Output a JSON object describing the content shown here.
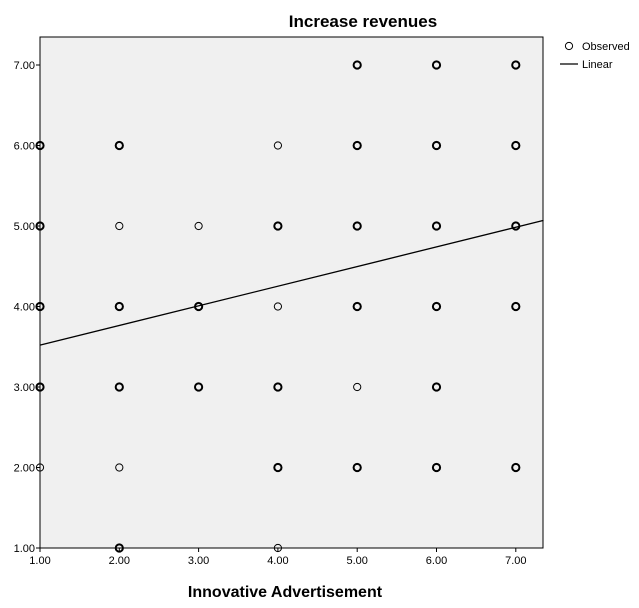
{
  "chart_data": {
    "type": "scatter",
    "title": "Increase revenues",
    "xlabel": "Innovative Advertisement",
    "ylabel": "",
    "xlim": [
      1.0,
      7.35
    ],
    "ylim": [
      1.0,
      7.35
    ],
    "xticks": [
      "1.00",
      "2.00",
      "3.00",
      "4.00",
      "5.00",
      "6.00",
      "7.00"
    ],
    "yticks": [
      "1.00",
      "2.00",
      "3.00",
      "4.00",
      "5.00",
      "6.00",
      "7.00"
    ],
    "grid": false,
    "legend": {
      "position": "top-right",
      "entries": [
        "Observed",
        "Linear"
      ]
    },
    "series": [
      {
        "name": "Observed",
        "points": [
          {
            "x": 1,
            "y": 2,
            "heavy": false
          },
          {
            "x": 1,
            "y": 3,
            "heavy": true
          },
          {
            "x": 1,
            "y": 4,
            "heavy": true
          },
          {
            "x": 1,
            "y": 5,
            "heavy": true
          },
          {
            "x": 1,
            "y": 6,
            "heavy": true
          },
          {
            "x": 2,
            "y": 1,
            "heavy": true
          },
          {
            "x": 2,
            "y": 2,
            "heavy": false
          },
          {
            "x": 2,
            "y": 3,
            "heavy": true
          },
          {
            "x": 2,
            "y": 4,
            "heavy": true
          },
          {
            "x": 2,
            "y": 5,
            "heavy": false
          },
          {
            "x": 2,
            "y": 6,
            "heavy": true
          },
          {
            "x": 3,
            "y": 3,
            "heavy": true
          },
          {
            "x": 3,
            "y": 4,
            "heavy": true
          },
          {
            "x": 3,
            "y": 5,
            "heavy": false
          },
          {
            "x": 4,
            "y": 1,
            "heavy": false
          },
          {
            "x": 4,
            "y": 2,
            "heavy": true
          },
          {
            "x": 4,
            "y": 3,
            "heavy": true
          },
          {
            "x": 4,
            "y": 4,
            "heavy": false
          },
          {
            "x": 4,
            "y": 5,
            "heavy": true
          },
          {
            "x": 4,
            "y": 6,
            "heavy": false
          },
          {
            "x": 5,
            "y": 2,
            "heavy": true
          },
          {
            "x": 5,
            "y": 3,
            "heavy": false
          },
          {
            "x": 5,
            "y": 4,
            "heavy": true
          },
          {
            "x": 5,
            "y": 5,
            "heavy": true
          },
          {
            "x": 5,
            "y": 6,
            "heavy": true
          },
          {
            "x": 5,
            "y": 7,
            "heavy": true
          },
          {
            "x": 6,
            "y": 2,
            "heavy": true
          },
          {
            "x": 6,
            "y": 3,
            "heavy": true
          },
          {
            "x": 6,
            "y": 4,
            "heavy": true
          },
          {
            "x": 6,
            "y": 5,
            "heavy": true
          },
          {
            "x": 6,
            "y": 6,
            "heavy": true
          },
          {
            "x": 6,
            "y": 7,
            "heavy": true
          },
          {
            "x": 7,
            "y": 2,
            "heavy": true
          },
          {
            "x": 7,
            "y": 4,
            "heavy": true
          },
          {
            "x": 7,
            "y": 5,
            "heavy": true
          },
          {
            "x": 7,
            "y": 6,
            "heavy": true
          },
          {
            "x": 7,
            "y": 7,
            "heavy": true
          }
        ]
      },
      {
        "name": "Linear",
        "line": {
          "x": [
            1.0,
            7.35
          ],
          "y": [
            3.52,
            5.07
          ]
        }
      }
    ],
    "colors": {
      "plot_background": "#f0f0f0",
      "marker": "#000000",
      "line": "#000000"
    }
  }
}
